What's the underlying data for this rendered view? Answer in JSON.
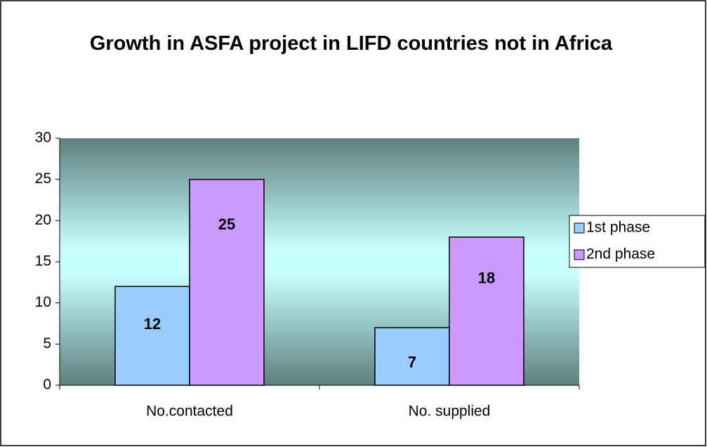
{
  "chart_data": {
    "type": "bar",
    "title": "Growth in ASFA project in LIFD countries not in Africa",
    "categories": [
      "No.contacted",
      "No. supplied"
    ],
    "series": [
      {
        "name": "1st phase",
        "color": "#99ccff",
        "values": [
          12,
          7
        ]
      },
      {
        "name": "2nd phase",
        "color": "#cc99ff",
        "values": [
          25,
          18
        ]
      }
    ],
    "ylim": [
      0,
      30
    ],
    "yticks": [
      0,
      5,
      10,
      15,
      20,
      25,
      30
    ],
    "legend": "right",
    "data_labels": true
  }
}
